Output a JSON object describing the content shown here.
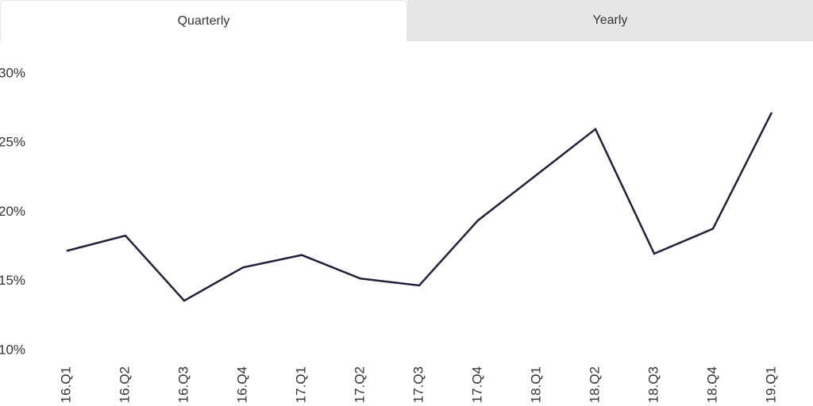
{
  "tabs": [
    {
      "label": "Quarterly",
      "active": true
    },
    {
      "label": "Yearly",
      "active": false
    }
  ],
  "chart_data": {
    "type": "line",
    "categories": [
      "16.Q1",
      "16.Q2",
      "16.Q3",
      "16.Q4",
      "17.Q1",
      "17.Q2",
      "17.Q3",
      "17.Q4",
      "18.Q1",
      "18.Q2",
      "18.Q3",
      "18.Q4",
      "19.Q1"
    ],
    "values": [
      17.2,
      18.3,
      13.6,
      16.0,
      16.9,
      15.2,
      14.7,
      19.4,
      22.7,
      26.0,
      17.0,
      18.8,
      27.2
    ],
    "color": "#22203a",
    "ylim": [
      10,
      30
    ],
    "yticks": [
      {
        "value": 10,
        "label": "10%"
      },
      {
        "value": 15,
        "label": "15%"
      },
      {
        "value": 20,
        "label": "20%"
      },
      {
        "value": 25,
        "label": "25%"
      },
      {
        "value": 30,
        "label": "30%"
      }
    ]
  }
}
